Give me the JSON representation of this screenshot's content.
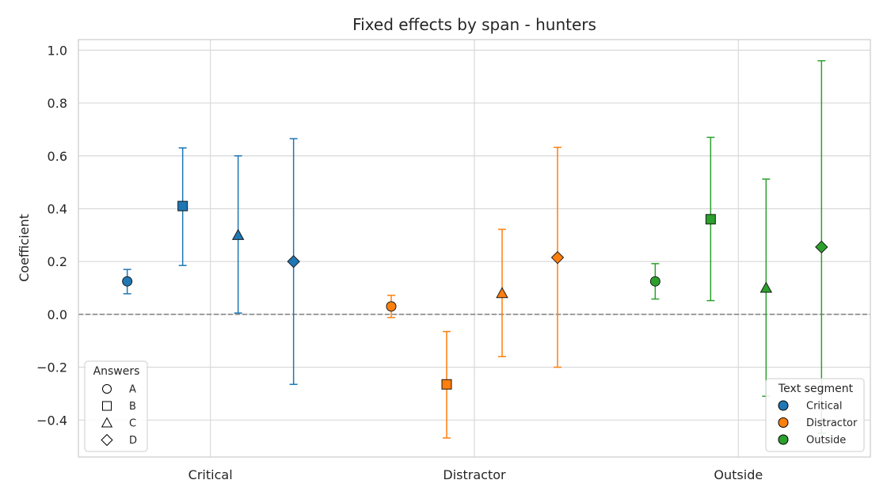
{
  "chart_data": {
    "type": "scatter",
    "title": "Fixed effects by span - hunters",
    "xlabel": "",
    "ylabel": "Coefficient",
    "categories": [
      "Critical",
      "Distractor",
      "Outside"
    ],
    "ylim": [
      -0.54,
      1.04
    ],
    "yticks": [
      "1.0",
      "0.8",
      "0.6",
      "0.4",
      "0.2",
      "0.0",
      "−0.2",
      "−0.4"
    ],
    "ytick_values": [
      1.0,
      0.8,
      0.6,
      0.4,
      0.2,
      0.0,
      -0.2,
      -0.4
    ],
    "grid": true,
    "reference_line": 0.0,
    "answers": [
      "A",
      "B",
      "C",
      "D"
    ],
    "series": [
      {
        "name": "Critical",
        "color": "#1f77b4",
        "points": [
          {
            "answer": "A",
            "value": 0.125,
            "lower": 0.078,
            "upper": 0.17
          },
          {
            "answer": "B",
            "value": 0.41,
            "lower": 0.185,
            "upper": 0.63
          },
          {
            "answer": "C",
            "value": 0.3,
            "lower": 0.005,
            "upper": 0.6
          },
          {
            "answer": "D",
            "value": 0.2,
            "lower": -0.265,
            "upper": 0.665
          }
        ]
      },
      {
        "name": "Distractor",
        "color": "#ff7f0e",
        "points": [
          {
            "answer": "A",
            "value": 0.03,
            "lower": -0.012,
            "upper": 0.072
          },
          {
            "answer": "B",
            "value": -0.265,
            "lower": -0.468,
            "upper": -0.065
          },
          {
            "answer": "C",
            "value": 0.08,
            "lower": -0.16,
            "upper": 0.322
          },
          {
            "answer": "D",
            "value": 0.215,
            "lower": -0.2,
            "upper": 0.632
          }
        ]
      },
      {
        "name": "Outside",
        "color": "#2ca02c",
        "points": [
          {
            "answer": "A",
            "value": 0.125,
            "lower": 0.058,
            "upper": 0.192
          },
          {
            "answer": "B",
            "value": 0.36,
            "lower": 0.052,
            "upper": 0.67
          },
          {
            "answer": "C",
            "value": 0.1,
            "lower": -0.31,
            "upper": 0.512
          },
          {
            "answer": "D",
            "value": 0.255,
            "lower": -0.45,
            "upper": 0.96
          }
        ]
      }
    ],
    "legend_answers": {
      "title": "Answers",
      "placement": "lower-left",
      "entries": [
        "A",
        "B",
        "C",
        "D"
      ]
    },
    "legend_segments": {
      "title": "Text segment",
      "placement": "lower-right",
      "entries": [
        "Critical",
        "Distractor",
        "Outside"
      ]
    }
  }
}
